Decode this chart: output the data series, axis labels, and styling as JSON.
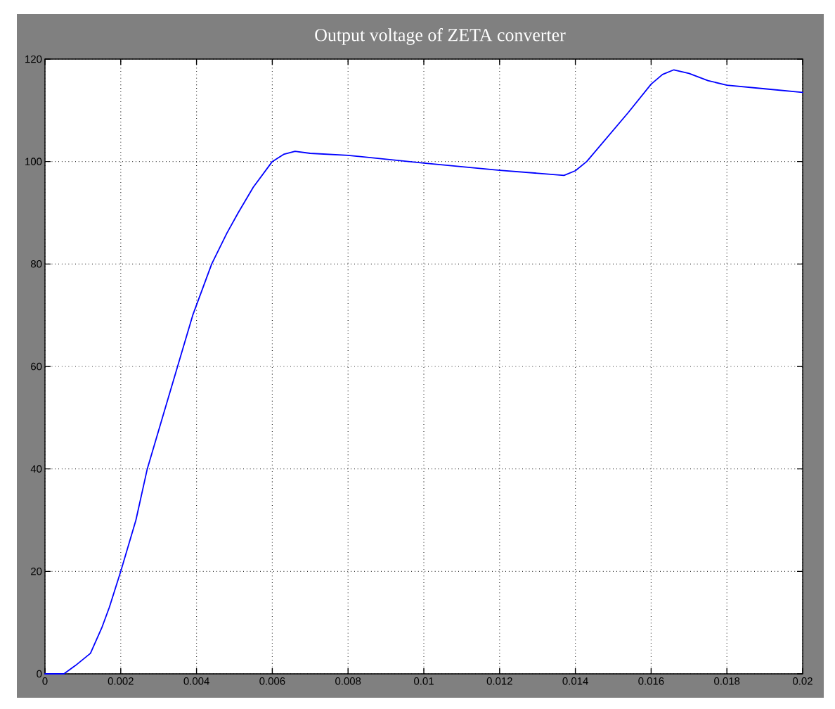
{
  "chart_data": {
    "type": "line",
    "title": "Output voltage of ZETA converter",
    "x": [
      0,
      0.0005,
      0.0008,
      0.0012,
      0.0015,
      0.0017,
      0.002,
      0.0024,
      0.0027,
      0.0031,
      0.0035,
      0.0039,
      0.0044,
      0.0048,
      0.0051,
      0.0055,
      0.006,
      0.0063,
      0.0066,
      0.007,
      0.008,
      0.01,
      0.012,
      0.0137,
      0.014,
      0.0143,
      0.0154,
      0.016,
      0.0163,
      0.0166,
      0.017,
      0.0175,
      0.018,
      0.019,
      0.02
    ],
    "values": [
      0,
      0,
      1.6,
      4,
      9,
      13,
      20,
      30,
      40,
      50,
      60,
      70,
      80,
      86,
      90,
      95,
      100,
      101.4,
      102,
      101.6,
      101.2,
      99.7,
      98.3,
      97.3,
      98.2,
      100,
      109.6,
      115.1,
      117,
      117.9,
      117.2,
      115.8,
      114.9,
      114.2,
      113.5
    ],
    "color": "#0000ff",
    "xlim": [
      0,
      0.02
    ],
    "xticks": [
      0,
      0.002,
      0.004,
      0.006,
      0.008,
      0.01,
      0.012,
      0.014,
      0.016,
      0.018,
      0.02
    ],
    "ylim": [
      0,
      120
    ],
    "yticks": [
      0,
      20,
      40,
      60,
      80,
      100,
      120
    ],
    "grid": true
  }
}
